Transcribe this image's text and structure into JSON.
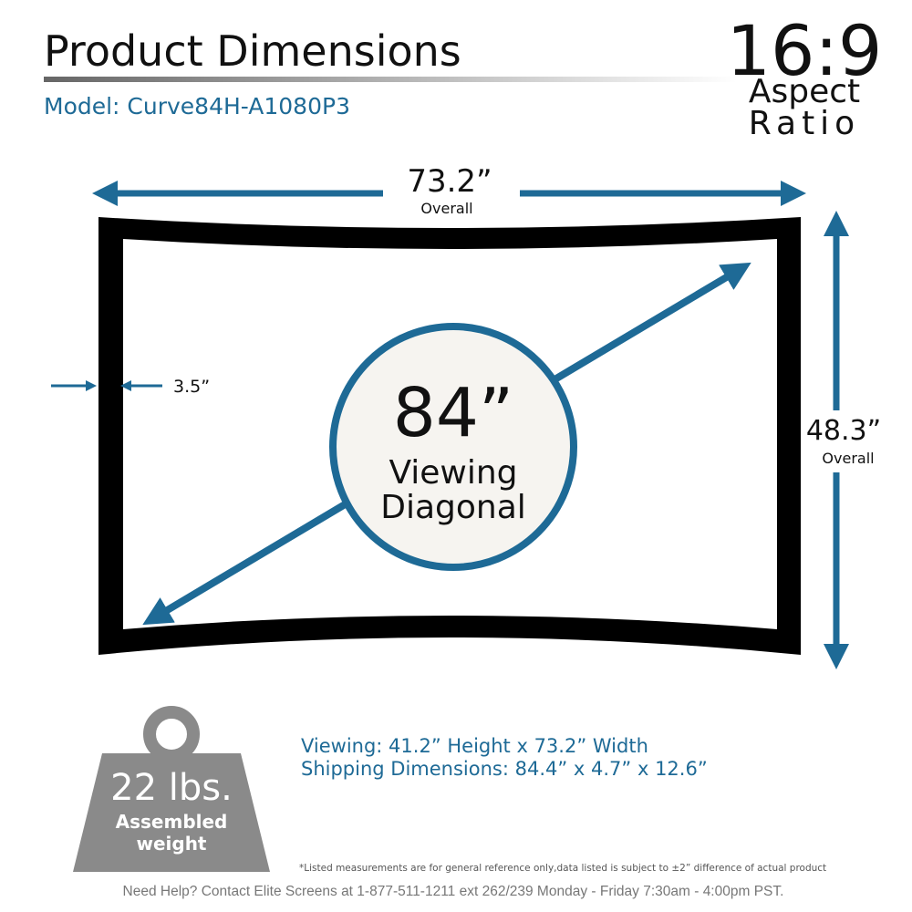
{
  "header": {
    "title": "Product Dimensions",
    "model": "Model: Curve84H-A1080P3"
  },
  "aspect": {
    "ratio": "16:9",
    "line1": "Aspect",
    "line2": "Ratio"
  },
  "dimensions": {
    "width": {
      "value": "73.2”",
      "label": "Overall"
    },
    "height": {
      "value": "48.3”",
      "label": "Overall"
    },
    "frame": "3.5”"
  },
  "diagonal": {
    "value": "84”",
    "line1": "Viewing",
    "line2": "Diagonal"
  },
  "weight": {
    "value": "22 lbs.",
    "line1": "Assembled",
    "line2": "weight"
  },
  "specs": [
    "Viewing: 41.2” Height x 73.2” Width",
    "Shipping Dimensions: 84.4” x 4.7” x 12.6”"
  ],
  "disclaimer": "*Listed measurements are for general reference only,data listed is subject to ±2” difference of actual product",
  "footer": "Need Help? Contact Elite Screens at 1-877-511-1211 ext 262/239 Monday - Friday 7:30am - 4:00pm PST."
}
